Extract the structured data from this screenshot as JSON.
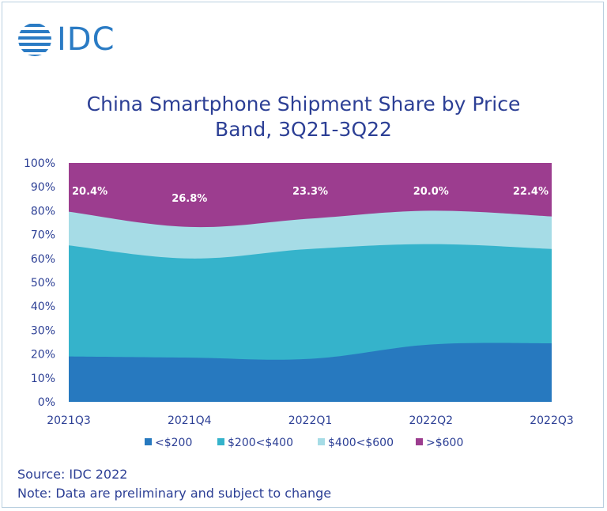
{
  "brand": {
    "name": "IDC"
  },
  "chart_data": {
    "type": "area",
    "stacked": true,
    "title": "China Smartphone Shipment Share by Price Band, 3Q21-3Q22",
    "title_lines": [
      "China Smartphone Shipment Share by Price",
      "Band, 3Q21-3Q22"
    ],
    "categories": [
      "2021Q3",
      "2021Q4",
      "2022Q1",
      "2022Q2",
      "2022Q3"
    ],
    "ylim": [
      0,
      100
    ],
    "yticks": [
      "0%",
      "10%",
      "20%",
      "30%",
      "40%",
      "50%",
      "60%",
      "70%",
      "80%",
      "90%",
      "100%"
    ],
    "series": [
      {
        "name": "<$200",
        "color": "#2779bf",
        "values": [
          19,
          18.5,
          18,
          24,
          24.5
        ]
      },
      {
        "name": "$200<$400",
        "color": "#35b3cb",
        "values": [
          46.5,
          41.5,
          46,
          42,
          39.5
        ]
      },
      {
        "name": "$400<$600",
        "color": "#a6dce6",
        "values": [
          14.1,
          13.2,
          12.7,
          14,
          13.6
        ]
      },
      {
        "name": ">$600",
        "color": "#9c3d8f",
        "values": [
          20.4,
          26.8,
          23.3,
          20.0,
          22.4
        ]
      }
    ],
    "annotations": [
      "20.4%",
      "26.8%",
      "23.3%",
      "20.0%",
      "22.4%"
    ],
    "grid": false,
    "legend_position": "bottom"
  },
  "footer": {
    "source": "Source: IDC 2022",
    "note": "Note: Data are preliminary and subject to change"
  }
}
